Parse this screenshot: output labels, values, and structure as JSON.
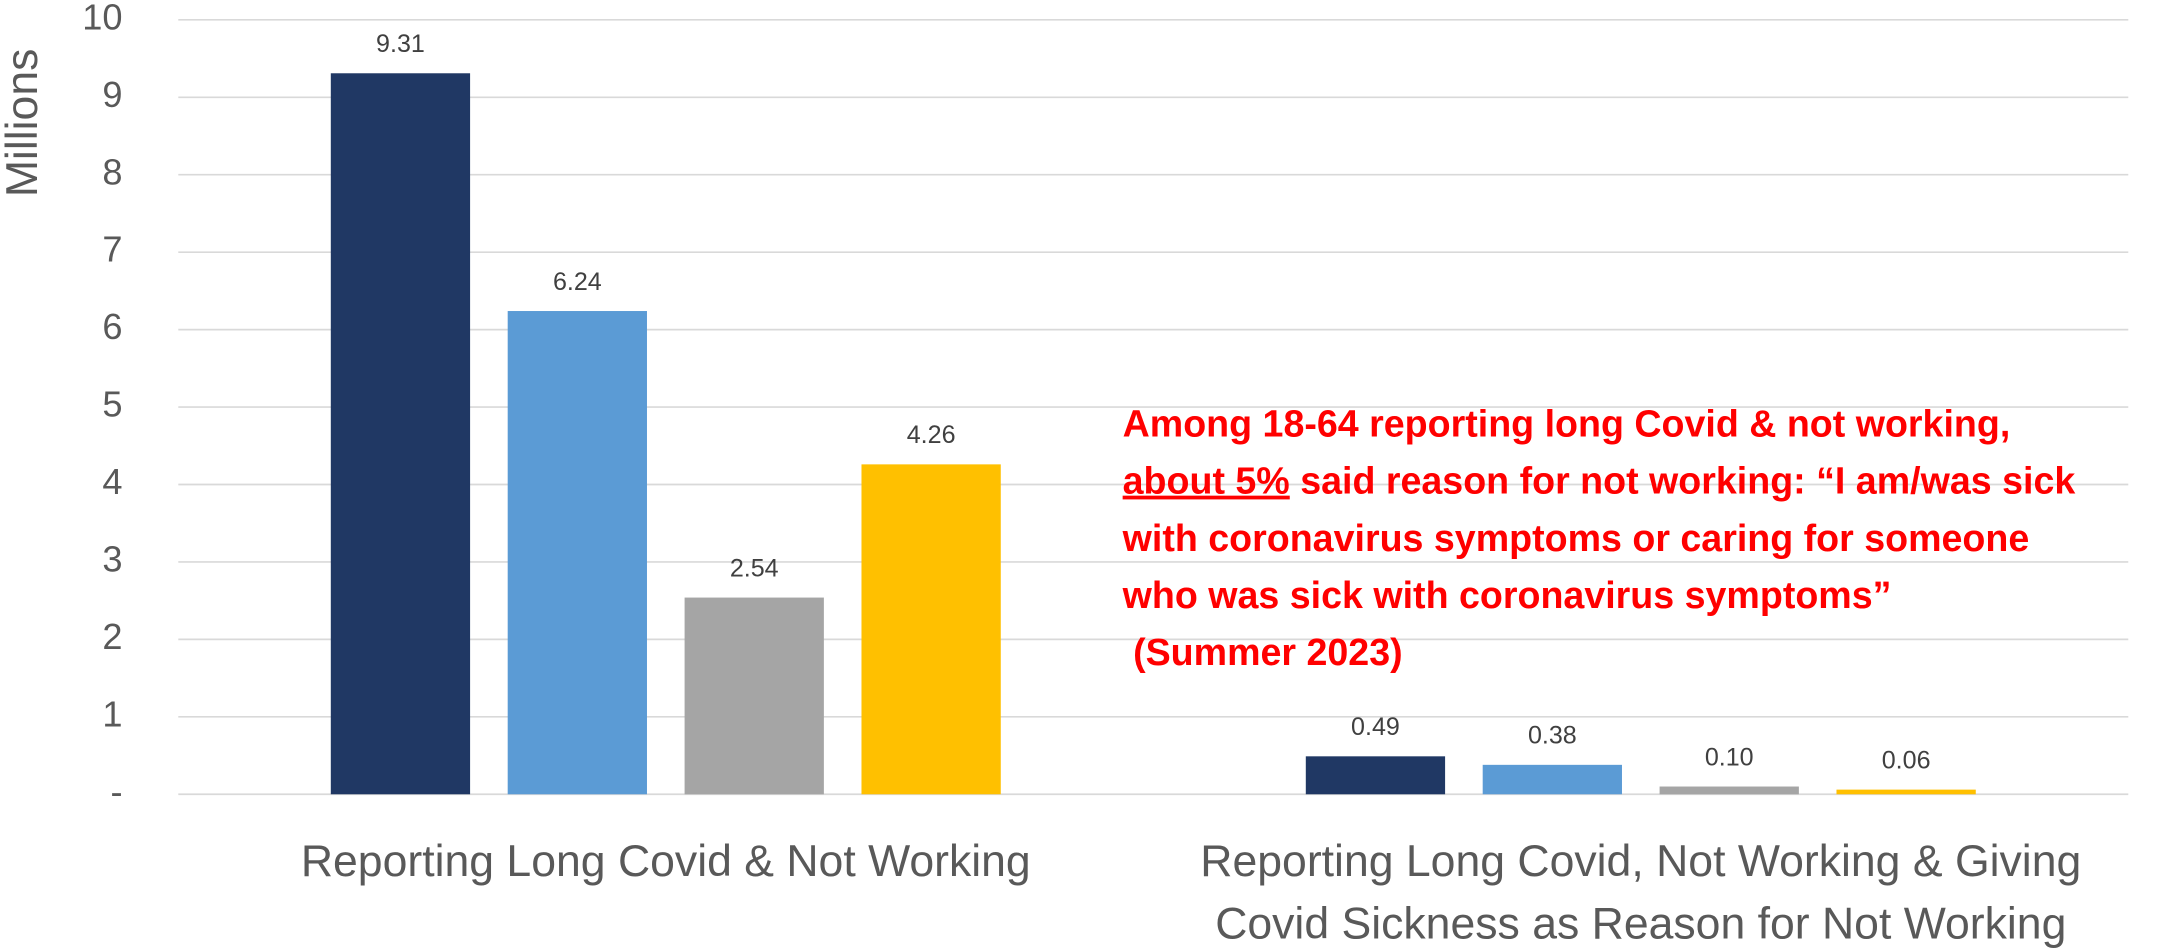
{
  "chart_data": {
    "type": "bar",
    "y_axis_label": "Millions",
    "categories": [
      "Reporting Long Covid & Not Working",
      "Reporting Long Covid, Not Working & Giving Covid Sickness as Reason for Not Working"
    ],
    "series": [
      {
        "color": "#203864",
        "values": [
          9.31,
          0.49
        ],
        "value_labels": [
          "9.31",
          "0.49"
        ]
      },
      {
        "color": "#5b9bd5",
        "values": [
          6.24,
          0.38
        ],
        "value_labels": [
          "6.24",
          "0.38"
        ]
      },
      {
        "color": "#a5a5a5",
        "values": [
          2.54,
          0.1
        ],
        "value_labels": [
          "2.54",
          "0.10"
        ]
      },
      {
        "color": "#ffc000",
        "values": [
          4.26,
          0.06
        ],
        "value_labels": [
          "4.26",
          "0.06"
        ]
      }
    ],
    "ylim": [
      0,
      10
    ],
    "yticks": [
      {
        "value": 0,
        "label": "-"
      },
      1,
      2,
      3,
      4,
      5,
      6,
      7,
      8,
      9,
      10
    ],
    "grid": true,
    "annotation": [
      [
        {
          "text": "Among 18-64 reporting long Covid & not working,"
        }
      ],
      [
        {
          "text": "about 5%",
          "underline": true
        },
        {
          "text": " said reason for not working: “I am/was sick"
        }
      ],
      [
        {
          "text": "with coronavirus symptoms or caring for someone"
        }
      ],
      [
        {
          "text": "who was sick with coronavirus symptoms”"
        }
      ],
      [
        {
          "text": " (Summer 2023)"
        }
      ]
    ],
    "annotation_color": "#ff0000"
  }
}
